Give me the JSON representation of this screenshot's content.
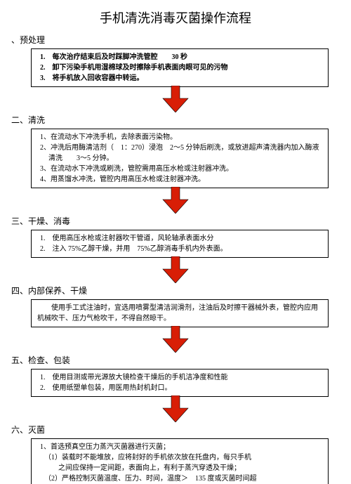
{
  "title": "手机清洗消毒灭菌操作流程",
  "arrow": {
    "fill": "#d81e06",
    "stroke": "#000000",
    "width": 40,
    "height": 38
  },
  "sections": [
    {
      "heading": "、预处理",
      "items": [
        "1.　每次治疗结束后及时踩脚冲洗管腔　　30 秒",
        "2.　卸下污染手机用湿棉球及时擦除手机表面肉眼可见的污物",
        "3.　将手机放入回收容器中转运。"
      ]
    },
    {
      "heading": "二、清洗",
      "items": [
        "1、在流动水下冲洗手机，去除表面污染物。",
        "2、冲洗后用酶清洁剂（　1：270）浸泡　2～5 分钟后刷洗，或放进超声清洗器内加入酶液清洗　　3～5 分钟。",
        "3、在流动水下冲洗或刷洗，管腔需用高压水枪或注射器冲洗。",
        "4、用蒸馏水冲洗，管腔内用高压水枪或注射器冲洗。"
      ]
    },
    {
      "heading": "三、干燥、消毒",
      "items": [
        "1.　使用高压水枪或注射器吹干管道，风轮轴承表面水分",
        "2.　注入 75%乙醇干燥，并用　75%乙醇消毒手机内外表面。"
      ]
    },
    {
      "heading": "四、内部保养、干燥",
      "center_text": "使用手工式注油时，宜选用喷雾型清洁润滑剂，注油后及时擦干器械外表，管腔内应用机械吹干、压力气枪吹干，不得自然晾干。"
    },
    {
      "heading": "五、检查、包装",
      "items": [
        "1.　使用目测或带光源放大镜检查干燥后的手机洁净度和性能",
        "2.　使用纸塑单包装，用医用热封机封口。"
      ]
    },
    {
      "heading": "六、灭菌",
      "items_complex": {
        "line1": "1、首选预真空压力蒸汽灭菌器进行灭菌；",
        "sub1": "（1）装载时不能堆放，应将封好的手机依次放在托盘内，每只手机",
        "sub1b": "之间应保持一定间距，表面向上，有利于蒸汽穿透及干燥；",
        "sub2": "（2）严格控制灭菌温度、压力、时间，温度＞　135 度或灭菌时间超"
      }
    }
  ]
}
